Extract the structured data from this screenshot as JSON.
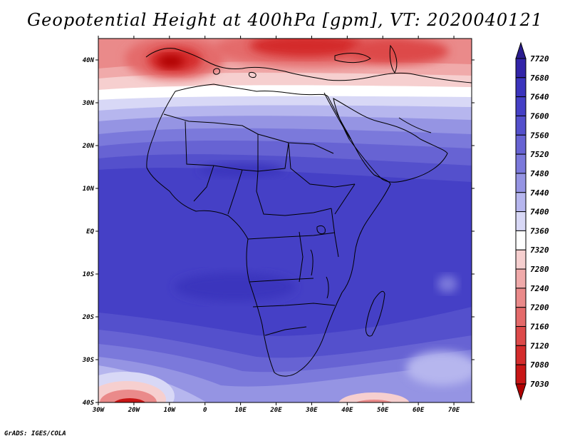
{
  "title": "Geopotential Height at 400hPa [gpm], VT: 2020040121",
  "credit": "GrADS: IGES/COLA",
  "lat_labels": [
    "40N",
    "30N",
    "20N",
    "10N",
    "EQ",
    "10S",
    "20S",
    "30S",
    "40S"
  ],
  "lon_labels": [
    "30W",
    "20W",
    "10W",
    "0",
    "10E",
    "20E",
    "30E",
    "40E",
    "50E",
    "60E",
    "70E"
  ],
  "colorbar": {
    "levels": [
      "7720",
      "7680",
      "7640",
      "7600",
      "7560",
      "7520",
      "7480",
      "7440",
      "7400",
      "7360",
      "7320",
      "7280",
      "7240",
      "7200",
      "7160",
      "7120",
      "7080",
      "7030"
    ],
    "colors": [
      "#2b1d8f",
      "#3224a8",
      "#3b34bd",
      "#4540c6",
      "#5450cc",
      "#6763d3",
      "#7b79db",
      "#9594e3",
      "#b6b6ee",
      "#d8d8f6",
      "#ffffff",
      "#f6cfcf",
      "#f0aaaa",
      "#ea8a8a",
      "#e46a6a",
      "#dd4a4a",
      "#d42c2c",
      "#c81616",
      "#b00000"
    ]
  },
  "map_region": {
    "lon_range": [
      -30,
      75
    ],
    "lat_range": [
      -40,
      45
    ],
    "colors": {
      "tropical_band": "#4540c6",
      "deep_low_spot": "#3b34bd",
      "north_high": "#c81616",
      "south_high": "#c81616",
      "coastline": "#000000"
    }
  }
}
